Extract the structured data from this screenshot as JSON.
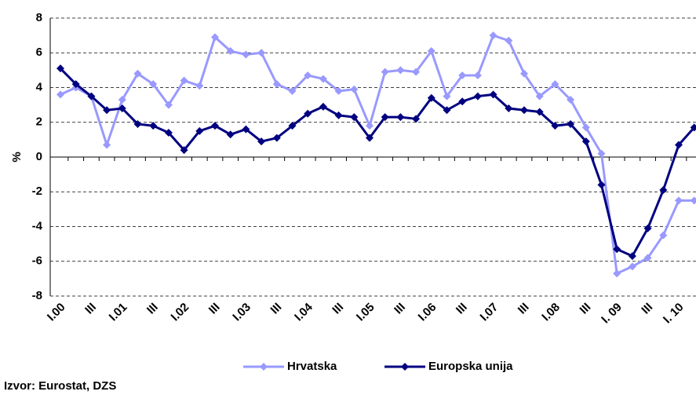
{
  "chart_data": {
    "type": "line",
    "y_label": "%",
    "source": "Izvor: Eurostat, DZS",
    "categories": [
      "I.00",
      null,
      "III",
      null,
      "I.01",
      null,
      "III",
      null,
      "I.02",
      null,
      "III",
      null,
      "I.03",
      null,
      "III",
      null,
      "I.04",
      null,
      "III",
      null,
      "I.05",
      null,
      "III",
      null,
      "I.06",
      null,
      "III",
      null,
      "I.07",
      null,
      "III",
      null,
      "I.08",
      null,
      "III",
      null,
      "I. 09",
      null,
      "III",
      null,
      "I. 10",
      null
    ],
    "series": [
      {
        "name": "Hrvatska",
        "color": "#9999ff",
        "values": [
          3.6,
          4.0,
          3.5,
          0.7,
          3.3,
          4.8,
          4.2,
          3.0,
          4.4,
          4.1,
          6.9,
          6.1,
          5.9,
          6.0,
          4.2,
          3.8,
          4.7,
          4.5,
          3.8,
          3.9,
          1.8,
          4.9,
          5.0,
          4.9,
          6.1,
          3.5,
          4.7,
          4.7,
          7.0,
          6.7,
          4.8,
          3.5,
          4.2,
          3.3,
          1.7,
          0.2,
          -6.7,
          -6.3,
          -5.8,
          -4.5,
          -2.5,
          -2.5
        ]
      },
      {
        "name": "Europska unija",
        "color": "#000080",
        "values": [
          5.1,
          4.2,
          3.5,
          2.7,
          2.8,
          1.9,
          1.8,
          1.4,
          0.4,
          1.5,
          1.8,
          1.3,
          1.6,
          0.9,
          1.1,
          1.8,
          2.5,
          2.9,
          2.4,
          2.3,
          1.1,
          2.3,
          2.3,
          2.2,
          3.4,
          2.7,
          3.2,
          3.5,
          3.6,
          2.8,
          2.7,
          2.6,
          1.8,
          1.9,
          0.9,
          -1.6,
          -5.3,
          -5.7,
          -4.1,
          -1.9,
          0.7,
          1.7
        ]
      }
    ],
    "ylim": [
      -8,
      8
    ],
    "yticks": [
      -8,
      -6,
      -4,
      -2,
      0,
      2,
      4,
      6,
      8
    ],
    "grid": true
  }
}
